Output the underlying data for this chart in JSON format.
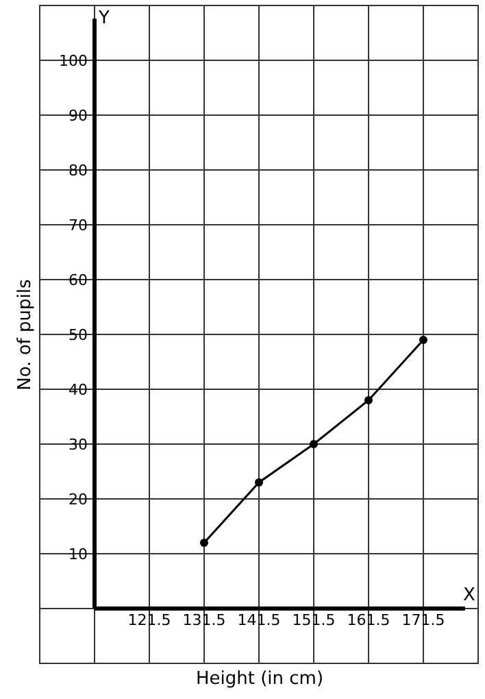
{
  "chart_data": {
    "type": "line",
    "xlabel": "Height (in cm)",
    "ylabel": "No. of pupils",
    "x": [
      131.5,
      141.5,
      151.5,
      161.5,
      171.5
    ],
    "series": [
      {
        "color": "#000000",
        "values": [
          12,
          23,
          30,
          38,
          49
        ]
      }
    ],
    "xlim": [
      101.5,
      181.5
    ],
    "xticks": [
      {
        "value": 111.5,
        "label": null
      },
      121.5,
      131.5,
      141.5,
      151.5,
      161.5,
      171.5
    ],
    "ylim": [
      -10,
      110
    ],
    "yticks": [
      {
        "value": 0,
        "label": null
      },
      10,
      20,
      30,
      40,
      50,
      60,
      70,
      80,
      90,
      100
    ],
    "annotations": [
      "X",
      "Y"
    ],
    "grid": true,
    "marker": "circle",
    "line_style": "solid"
  }
}
